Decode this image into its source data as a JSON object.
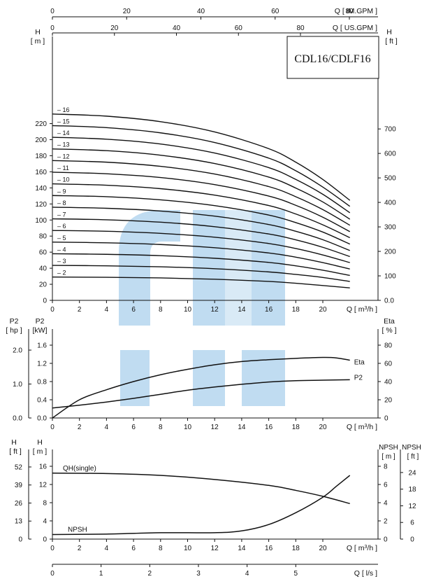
{
  "title": "CDL16/CDLF16",
  "watermark": {
    "text": "CNP",
    "color": "#b9d8ef"
  },
  "units": {
    "q_m3h": "Q [ m3/h ]",
    "q_imgpm": "Q [ IM.GPM ]",
    "q_usgpm": "Q [ US.GPM ]",
    "q_ls": "Q [ l/s ]",
    "h_m_name": "H",
    "h_m_unit": "[ m ]",
    "h_ft_name": "H",
    "h_ft_unit": "[ ft ]",
    "p2_hp_name": "P2",
    "p2_hp_unit": "[ hp ]",
    "p2_kw_name": "P2",
    "p2_kw_unit": "[kW]",
    "eta_name": "Eta",
    "eta_unit": "[ % ]",
    "npsh_m_name": "NPSH",
    "npsh_m_unit": "[ m ]",
    "npsh_ft_name": "NPSH",
    "npsh_ft_unit": "[ ft ]"
  },
  "chart_data": [
    {
      "id": "head",
      "type": "line",
      "x_label": "Q [ m3/h ]",
      "y_label": "H [ m ]",
      "y2_label": "H [ ft ]",
      "xlim": [
        0,
        22
      ],
      "ylim": [
        0,
        240
      ],
      "x_ticks": [
        0,
        2,
        4,
        6,
        8,
        10,
        12,
        14,
        16,
        18,
        20
      ],
      "y_ticks": [
        0,
        20,
        40,
        60,
        80,
        100,
        120,
        140,
        160,
        180,
        200,
        220
      ],
      "y2_ticks": [
        0,
        100,
        200,
        300,
        400,
        500,
        600,
        700
      ],
      "top_axis_imgpm_ticks": [
        0,
        20,
        40,
        60,
        80
      ],
      "top_axis_usgpm_ticks": [
        0,
        20,
        40,
        60,
        80
      ],
      "series": [
        {
          "name": "2",
          "values": [
            [
              0,
              29
            ],
            [
              4,
              28.7
            ],
            [
              8,
              27.9
            ],
            [
              12,
              26.3
            ],
            [
              16,
              23.6
            ],
            [
              18,
              21.3
            ],
            [
              20,
              18.5
            ],
            [
              22,
              15.5
            ]
          ]
        },
        {
          "name": "3",
          "values": [
            [
              0,
              43.5
            ],
            [
              4,
              43
            ],
            [
              8,
              41.8
            ],
            [
              12,
              39.4
            ],
            [
              16,
              35.4
            ],
            [
              18,
              32.3
            ],
            [
              20,
              28.5
            ],
            [
              22,
              23.5
            ]
          ]
        },
        {
          "name": "4",
          "values": [
            [
              0,
              58
            ],
            [
              4,
              57.3
            ],
            [
              8,
              55.6
            ],
            [
              12,
              52.4
            ],
            [
              16,
              47.2
            ],
            [
              18,
              43
            ],
            [
              20,
              37.5
            ],
            [
              22,
              31
            ]
          ]
        },
        {
          "name": "5",
          "values": [
            [
              0,
              72.5
            ],
            [
              4,
              71.6
            ],
            [
              8,
              69.5
            ],
            [
              12,
              65.5
            ],
            [
              16,
              59
            ],
            [
              18,
              53.8
            ],
            [
              20,
              47
            ],
            [
              22,
              39
            ]
          ]
        },
        {
          "name": "6",
          "values": [
            [
              0,
              87
            ],
            [
              4,
              86
            ],
            [
              8,
              83.4
            ],
            [
              12,
              78.6
            ],
            [
              16,
              70.8
            ],
            [
              18,
              64.5
            ],
            [
              20,
              56.5
            ],
            [
              22,
              47
            ]
          ]
        },
        {
          "name": "7",
          "values": [
            [
              0,
              101.5
            ],
            [
              4,
              100.3
            ],
            [
              8,
              97.3
            ],
            [
              12,
              91.7
            ],
            [
              16,
              82.6
            ],
            [
              18,
              75.3
            ],
            [
              20,
              66
            ],
            [
              22,
              54.5
            ]
          ]
        },
        {
          "name": "8",
          "values": [
            [
              0,
              116
            ],
            [
              4,
              114.6
            ],
            [
              8,
              111.2
            ],
            [
              12,
              104.8
            ],
            [
              16,
              94.4
            ],
            [
              18,
              86
            ],
            [
              20,
              75.5
            ],
            [
              22,
              62
            ]
          ]
        },
        {
          "name": "9",
          "values": [
            [
              0,
              130.5
            ],
            [
              4,
              129
            ],
            [
              8,
              125.1
            ],
            [
              12,
              117.9
            ],
            [
              16,
              106.2
            ],
            [
              18,
              96.8
            ],
            [
              20,
              85
            ],
            [
              22,
              70
            ]
          ]
        },
        {
          "name": "10",
          "values": [
            [
              0,
              145
            ],
            [
              4,
              143.3
            ],
            [
              8,
              139
            ],
            [
              12,
              131
            ],
            [
              16,
              118
            ],
            [
              18,
              107.5
            ],
            [
              20,
              94
            ],
            [
              22,
              78
            ]
          ]
        },
        {
          "name": "11",
          "values": [
            [
              0,
              159.5
            ],
            [
              4,
              157.6
            ],
            [
              8,
              152.9
            ],
            [
              12,
              144.1
            ],
            [
              16,
              129.8
            ],
            [
              18,
              118.3
            ],
            [
              20,
              103.5
            ],
            [
              22,
              85.5
            ]
          ]
        },
        {
          "name": "12",
          "values": [
            [
              0,
              174
            ],
            [
              4,
              172
            ],
            [
              8,
              166.8
            ],
            [
              12,
              157.2
            ],
            [
              16,
              141.6
            ],
            [
              18,
              129
            ],
            [
              20,
              113
            ],
            [
              22,
              93.5
            ]
          ]
        },
        {
          "name": "13",
          "values": [
            [
              0,
              188.5
            ],
            [
              4,
              186.3
            ],
            [
              8,
              180.7
            ],
            [
              12,
              170.3
            ],
            [
              16,
              153.4
            ],
            [
              18,
              139.8
            ],
            [
              20,
              122.5
            ],
            [
              22,
              101
            ]
          ]
        },
        {
          "name": "14",
          "values": [
            [
              0,
              203
            ],
            [
              4,
              200.6
            ],
            [
              8,
              194.6
            ],
            [
              12,
              183.4
            ],
            [
              16,
              165.2
            ],
            [
              18,
              150.5
            ],
            [
              20,
              132
            ],
            [
              22,
              109
            ]
          ]
        },
        {
          "name": "15",
          "values": [
            [
              0,
              217.5
            ],
            [
              4,
              215
            ],
            [
              8,
              208.5
            ],
            [
              12,
              196.5
            ],
            [
              16,
              177
            ],
            [
              18,
              161.3
            ],
            [
              20,
              141
            ],
            [
              22,
              117
            ]
          ]
        },
        {
          "name": "16",
          "values": [
            [
              0,
              232
            ],
            [
              4,
              229.3
            ],
            [
              8,
              222.4
            ],
            [
              12,
              209.6
            ],
            [
              16,
              188.8
            ],
            [
              18,
              172
            ],
            [
              20,
              150.5
            ],
            [
              22,
              124.5
            ]
          ]
        }
      ]
    },
    {
      "id": "power",
      "type": "line",
      "x_label": "Q [ m3/h ]",
      "xlim": [
        0,
        22
      ],
      "ylim_kw": [
        0,
        1.9
      ],
      "y_kw_ticks": [
        "0.0",
        "0.4",
        "0.8",
        "1.2",
        "1.6"
      ],
      "y_hp_ticks": [
        "0.0",
        "1.0",
        "2.0"
      ],
      "y_eta_ticks": [
        "0",
        "20",
        "40",
        "60",
        "80"
      ],
      "x_ticks": [
        0,
        2,
        4,
        6,
        8,
        10,
        12,
        14,
        16,
        18,
        20
      ],
      "series": [
        {
          "name": "Eta",
          "axis": "eta",
          "values": [
            [
              0,
              0
            ],
            [
              2,
              20
            ],
            [
              4,
              31
            ],
            [
              6,
              40
            ],
            [
              8,
              47.5
            ],
            [
              10,
              53.5
            ],
            [
              12,
              58.5
            ],
            [
              14,
              62
            ],
            [
              16,
              64
            ],
            [
              18,
              65.5
            ],
            [
              20,
              66.5
            ],
            [
              21,
              66
            ],
            [
              22,
              63.5
            ]
          ]
        },
        {
          "name": "P2",
          "axis": "kw",
          "values": [
            [
              0,
              0.22
            ],
            [
              2,
              0.28
            ],
            [
              4,
              0.35
            ],
            [
              6,
              0.43
            ],
            [
              8,
              0.52
            ],
            [
              10,
              0.61
            ],
            [
              12,
              0.68
            ],
            [
              14,
              0.74
            ],
            [
              16,
              0.79
            ],
            [
              18,
              0.82
            ],
            [
              20,
              0.83
            ],
            [
              22,
              0.84
            ]
          ]
        }
      ]
    },
    {
      "id": "npsh",
      "type": "line",
      "x_label": "Q [ m3/h ]",
      "xlim": [
        0,
        22
      ],
      "ylim_h_m": [
        0,
        17
      ],
      "ylim_npsh_m": [
        0,
        8.5
      ],
      "y_h_m_ticks": [
        0,
        4,
        8,
        12,
        16
      ],
      "y_h_ft_ticks": [
        0,
        13,
        26,
        39,
        52
      ],
      "y_npsh_m_ticks": [
        0,
        2,
        4,
        6,
        8
      ],
      "y_npsh_ft_ticks": [
        0,
        6,
        12,
        18,
        24
      ],
      "x_ticks": [
        0,
        2,
        4,
        6,
        8,
        10,
        12,
        14,
        16,
        18,
        20
      ],
      "series": [
        {
          "name": "QH(single)",
          "axis": "h",
          "values": [
            [
              0,
              14.5
            ],
            [
              4,
              14.4
            ],
            [
              8,
              14
            ],
            [
              12,
              13.1
            ],
            [
              16,
              11.8
            ],
            [
              18,
              10.7
            ],
            [
              20,
              9.4
            ],
            [
              22,
              7.8
            ]
          ]
        },
        {
          "name": "NPSH",
          "axis": "npsh",
          "values": [
            [
              0,
              0.5
            ],
            [
              4,
              0.55
            ],
            [
              8,
              0.7
            ],
            [
              12,
              0.7
            ],
            [
              14,
              0.9
            ],
            [
              16,
              1.6
            ],
            [
              18,
              2.9
            ],
            [
              20,
              4.6
            ],
            [
              21,
              5.8
            ],
            [
              22,
              7
            ]
          ]
        }
      ],
      "ls_axis_ticks": [
        0,
        1,
        2,
        3,
        4,
        5
      ]
    }
  ]
}
